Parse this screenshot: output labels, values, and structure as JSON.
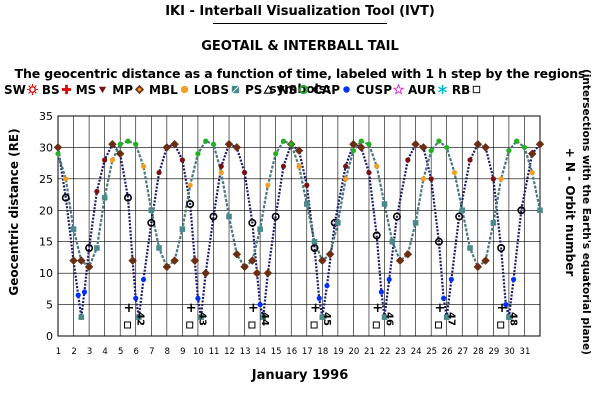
{
  "header": {
    "title": "IKI - Interball Visualization Tool (IVT)",
    "subtitle": "GEOTAIL & INTERBALL TAIL",
    "description": "The geocentric distance as a function of time, labeled with 1 h step by the regions symbols:"
  },
  "legend": [
    {
      "label": "SW",
      "symbol": "sun",
      "color": "#e00000"
    },
    {
      "label": "BS",
      "symbol": "plus",
      "color": "#e00000"
    },
    {
      "label": "MS",
      "symbol": "triangle-down",
      "color": "#7a1010"
    },
    {
      "label": "MP",
      "symbol": "diamond",
      "color": "#6b2e12"
    },
    {
      "label": "MBL",
      "symbol": "circle",
      "color": "#f0a020"
    },
    {
      "label": "LOBS",
      "symbol": "square",
      "color": "#4a8a8a"
    },
    {
      "label": "PS",
      "symbol": "triangle-open",
      "color": "#000000"
    },
    {
      "label": "NS",
      "symbol": "circle-open",
      "color": "#20b020"
    },
    {
      "label": "CAP",
      "symbol": "dot",
      "color": "#0030ff"
    },
    {
      "label": "CUSP",
      "symbol": "star",
      "color": "#e020e0"
    },
    {
      "label": "AUR",
      "symbol": "asterisk",
      "color": "#00c0d0"
    },
    {
      "label": "RB",
      "symbol": "square-open",
      "color": "#000000"
    }
  ],
  "chart_data": {
    "type": "scatter",
    "xlabel": "January 1996",
    "ylabel": "Geocentric distance (RE)",
    "right_label": "+ N - Orbit number",
    "right_label_2": "(intersections with the Earth's equatorial plane)",
    "xlim": [
      1,
      32
    ],
    "ylim": [
      0,
      35
    ],
    "x_ticks": [
      "1",
      "2",
      "3",
      "4",
      "5",
      "6",
      "7",
      "8",
      "9",
      "10",
      "11",
      "12",
      "13",
      "14",
      "15",
      "16",
      "17",
      "18",
      "19",
      "20",
      "21",
      "22",
      "23",
      "24",
      "25",
      "26",
      "27",
      "28",
      "29",
      "30",
      "31"
    ],
    "y_ticks": [
      0,
      5,
      10,
      15,
      20,
      25,
      30,
      35
    ],
    "grid": true,
    "orbit_markers": [
      {
        "day": 5.6,
        "label": "42"
      },
      {
        "day": 9.6,
        "label": "43"
      },
      {
        "day": 13.6,
        "label": "44"
      },
      {
        "day": 17.6,
        "label": "45"
      },
      {
        "day": 21.6,
        "label": "46"
      },
      {
        "day": 25.6,
        "label": "47"
      },
      {
        "day": 29.6,
        "label": "48"
      }
    ],
    "series": [
      {
        "description": "INTERBALL TAIL",
        "points": [
          [
            1.0,
            30.0
          ],
          [
            1.5,
            22.0
          ],
          [
            2.0,
            12.0
          ],
          [
            2.3,
            6.5
          ],
          [
            2.5,
            3.0
          ],
          [
            2.7,
            7.0
          ],
          [
            3.0,
            14.0
          ],
          [
            3.5,
            23.0
          ],
          [
            4.0,
            28.0
          ],
          [
            4.5,
            30.5
          ],
          [
            5.0,
            29.0
          ],
          [
            5.5,
            22.0
          ],
          [
            5.8,
            12.0
          ],
          [
            6.0,
            6.0
          ],
          [
            6.2,
            3.0
          ],
          [
            6.5,
            9.0
          ],
          [
            7.0,
            18.0
          ],
          [
            7.5,
            26.0
          ],
          [
            8.0,
            30.0
          ],
          [
            8.5,
            30.5
          ],
          [
            9.0,
            28.0
          ],
          [
            9.5,
            21.0
          ],
          [
            9.8,
            12.0
          ],
          [
            10.0,
            6.0
          ],
          [
            10.2,
            3.0
          ],
          [
            10.5,
            10.0
          ],
          [
            11.0,
            19.0
          ],
          [
            11.5,
            27.0
          ],
          [
            12.0,
            30.5
          ],
          [
            12.5,
            30.0
          ],
          [
            13.0,
            26.0
          ],
          [
            13.5,
            18.0
          ],
          [
            13.8,
            10.0
          ],
          [
            14.0,
            5.0
          ],
          [
            14.2,
            3.0
          ],
          [
            14.5,
            10.0
          ],
          [
            15.0,
            19.0
          ],
          [
            15.5,
            27.0
          ],
          [
            16.0,
            30.5
          ],
          [
            16.5,
            29.5
          ],
          [
            17.0,
            24.0
          ],
          [
            17.5,
            14.0
          ],
          [
            17.8,
            6.0
          ],
          [
            18.0,
            3.0
          ],
          [
            18.3,
            8.0
          ],
          [
            18.8,
            18.0
          ],
          [
            19.5,
            27.0
          ],
          [
            20.0,
            30.5
          ],
          [
            20.5,
            30.0
          ],
          [
            21.0,
            26.0
          ],
          [
            21.5,
            16.0
          ],
          [
            21.8,
            7.0
          ],
          [
            22.0,
            3.0
          ],
          [
            22.3,
            9.0
          ],
          [
            22.8,
            19.0
          ],
          [
            23.5,
            28.0
          ],
          [
            24.0,
            30.5
          ],
          [
            24.5,
            30.0
          ],
          [
            25.0,
            25.0
          ],
          [
            25.5,
            15.0
          ],
          [
            25.8,
            6.0
          ],
          [
            26.0,
            3.0
          ],
          [
            26.3,
            9.0
          ],
          [
            26.8,
            19.0
          ],
          [
            27.5,
            28.0
          ],
          [
            28.0,
            30.5
          ],
          [
            28.5,
            30.0
          ],
          [
            29.0,
            25.0
          ],
          [
            29.5,
            14.0
          ],
          [
            29.8,
            5.0
          ],
          [
            30.0,
            3.0
          ],
          [
            30.3,
            9.0
          ],
          [
            30.8,
            20.0
          ],
          [
            31.5,
            29.0
          ],
          [
            32.0,
            30.5
          ]
        ]
      },
      {
        "description": "GEOTAIL",
        "points": [
          [
            1.0,
            29.0
          ],
          [
            1.5,
            25.0
          ],
          [
            2.0,
            17.0
          ],
          [
            2.5,
            12.0
          ],
          [
            3.0,
            11.0
          ],
          [
            3.5,
            14.0
          ],
          [
            4.0,
            22.0
          ],
          [
            4.5,
            28.0
          ],
          [
            5.0,
            30.5
          ],
          [
            5.5,
            31.0
          ],
          [
            6.0,
            30.5
          ],
          [
            6.5,
            27.0
          ],
          [
            7.0,
            20.0
          ],
          [
            7.5,
            14.0
          ],
          [
            8.0,
            11.0
          ],
          [
            8.5,
            12.0
          ],
          [
            9.0,
            17.0
          ],
          [
            9.5,
            24.0
          ],
          [
            10.0,
            29.0
          ],
          [
            10.5,
            31.0
          ],
          [
            11.0,
            30.5
          ],
          [
            11.5,
            26.0
          ],
          [
            12.0,
            19.0
          ],
          [
            12.5,
            13.0
          ],
          [
            13.0,
            11.0
          ],
          [
            13.5,
            12.0
          ],
          [
            14.0,
            17.0
          ],
          [
            14.5,
            24.0
          ],
          [
            15.0,
            29.0
          ],
          [
            15.5,
            31.0
          ],
          [
            16.0,
            30.5
          ],
          [
            16.5,
            27.0
          ],
          [
            17.0,
            21.0
          ],
          [
            17.5,
            15.0
          ],
          [
            18.0,
            12.0
          ],
          [
            18.5,
            13.0
          ],
          [
            19.0,
            18.0
          ],
          [
            19.5,
            25.0
          ],
          [
            20.0,
            29.5
          ],
          [
            20.5,
            31.0
          ],
          [
            21.0,
            30.5
          ],
          [
            21.5,
            27.0
          ],
          [
            22.0,
            21.0
          ],
          [
            22.5,
            15.0
          ],
          [
            23.0,
            12.0
          ],
          [
            23.5,
            13.0
          ],
          [
            24.0,
            18.0
          ],
          [
            24.5,
            25.0
          ],
          [
            25.0,
            29.5
          ],
          [
            25.5,
            31.0
          ],
          [
            26.0,
            30.0
          ],
          [
            26.5,
            26.0
          ],
          [
            27.0,
            20.0
          ],
          [
            27.5,
            14.0
          ],
          [
            28.0,
            11.0
          ],
          [
            28.5,
            12.0
          ],
          [
            29.0,
            18.0
          ],
          [
            29.5,
            25.0
          ],
          [
            30.0,
            29.5
          ],
          [
            30.5,
            31.0
          ],
          [
            31.0,
            30.0
          ],
          [
            31.5,
            26.0
          ],
          [
            32.0,
            20.0
          ]
        ]
      }
    ]
  }
}
